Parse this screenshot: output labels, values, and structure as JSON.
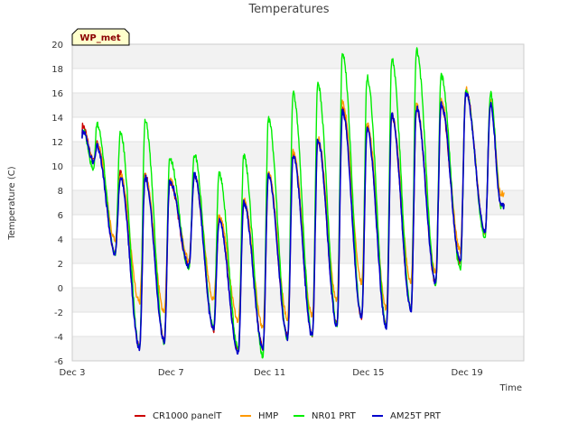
{
  "chart_data": {
    "type": "line",
    "title": "Temperatures",
    "badge": "WP_met",
    "xlabel": "Time",
    "ylabel": "Temperature (C)",
    "ylim": [
      -6,
      20
    ],
    "yticks": [
      -6,
      -4,
      -2,
      0,
      2,
      4,
      6,
      8,
      10,
      12,
      14,
      16,
      18,
      20
    ],
    "xlim_days": [
      3,
      21.3
    ],
    "xticks": [
      {
        "day": 3,
        "label": "Dec 3"
      },
      {
        "day": 7,
        "label": "Dec 7"
      },
      {
        "day": 11,
        "label": "Dec 11"
      },
      {
        "day": 15,
        "label": "Dec 15"
      },
      {
        "day": 19,
        "label": "Dec 19"
      }
    ],
    "start_day": 3.4,
    "end_day": 20.5,
    "daily_max_min_day": [
      3.42,
      4.0,
      4.95,
      5.95,
      6.95,
      7.95,
      8.95,
      9.95,
      10.95,
      11.95,
      12.95,
      13.95,
      14.95,
      15.95,
      16.95,
      17.95,
      18.95,
      19.95
    ],
    "series": [
      {
        "name": "CR1000 panelT",
        "color": "#cc0000",
        "max": [
          13.3,
          11.9,
          9.5,
          9.3,
          8.7,
          9.3,
          5.6,
          7.1,
          9.3,
          11.0,
          12.1,
          14.7,
          13.2,
          14.1,
          14.7,
          15.0,
          16.2,
          15.2
        ],
        "min": [
          10.4,
          2.8,
          -4.9,
          -4.3,
          1.8,
          -3.5,
          -5.1,
          -4.9,
          -4.0,
          -3.9,
          -3.0,
          -2.4,
          -3.1,
          -1.7,
          0.4,
          2.1,
          4.6,
          6.8
        ]
      },
      {
        "name": "HMP",
        "color": "#ff9900",
        "max": [
          13.0,
          11.9,
          9.3,
          9.2,
          8.9,
          9.3,
          6.0,
          7.3,
          9.4,
          11.2,
          12.3,
          15.2,
          13.6,
          14.3,
          15.0,
          15.3,
          16.3,
          15.3
        ],
        "min": [
          10.4,
          4.0,
          -1.2,
          -2.0,
          2.3,
          -1.0,
          -2.7,
          -3.2,
          -2.5,
          -2.3,
          -1.0,
          0.4,
          -1.7,
          0.5,
          1.2,
          3.0,
          4.5,
          7.7
        ]
      },
      {
        "name": "NR01 PRT",
        "color": "#00ee00",
        "max": [
          13.0,
          13.5,
          12.8,
          13.7,
          10.6,
          10.9,
          9.4,
          10.8,
          13.9,
          16.0,
          16.7,
          19.3,
          17.3,
          18.8,
          19.5,
          17.4,
          16.2,
          16.0
        ],
        "min": [
          9.7,
          2.7,
          -4.9,
          -4.5,
          1.5,
          -3.3,
          -5.0,
          -5.6,
          -4.3,
          -4.0,
          -3.0,
          -2.4,
          -3.2,
          -1.7,
          0.4,
          1.5,
          4.2,
          6.7
        ]
      },
      {
        "name": "AM25T PRT",
        "color": "#0000cc",
        "max": [
          12.9,
          11.6,
          9.1,
          9.1,
          8.8,
          9.3,
          5.5,
          7.0,
          9.2,
          10.9,
          12.1,
          14.5,
          13.0,
          14.2,
          14.8,
          15.1,
          16.0,
          15.1
        ],
        "min": [
          10.3,
          2.8,
          -5.0,
          -4.4,
          1.8,
          -3.5,
          -5.3,
          -5.0,
          -4.1,
          -4.0,
          -3.1,
          -2.5,
          -3.2,
          -1.8,
          0.4,
          2.1,
          4.6,
          6.7
        ]
      }
    ]
  }
}
